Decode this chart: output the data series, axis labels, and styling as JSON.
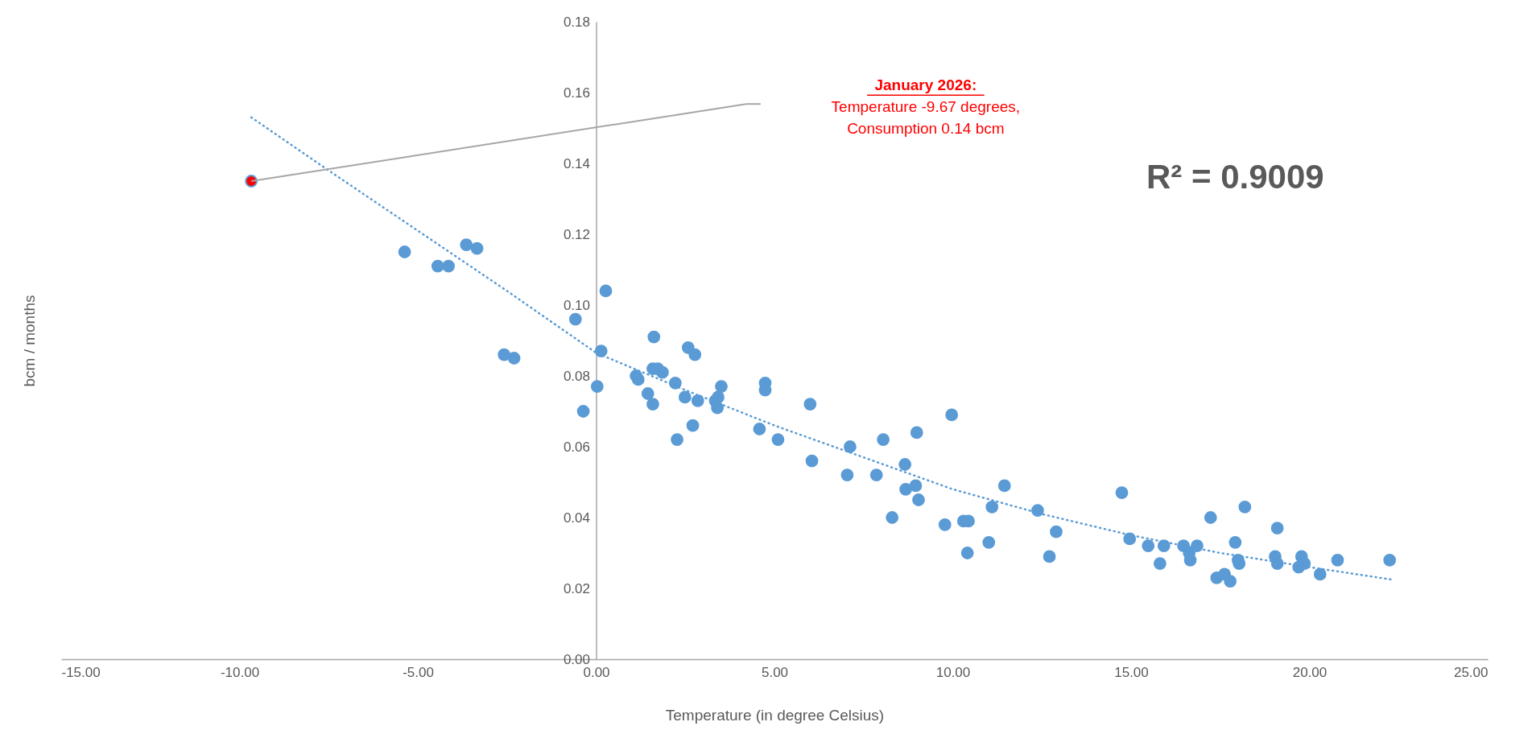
{
  "chart_data": {
    "type": "scatter",
    "xlabel": "Temperature (in degree Celsius)",
    "ylabel": "bcm / months",
    "xlim": [
      -15,
      25
    ],
    "ylim": [
      0,
      0.18
    ],
    "xticks": [
      {
        "value": -15,
        "label": "-15.00"
      },
      {
        "value": -10,
        "label": "-10.00"
      },
      {
        "value": -5,
        "label": "-5.00"
      },
      {
        "value": 0,
        "label": "0.00"
      },
      {
        "value": 5,
        "label": "5.00"
      },
      {
        "value": 10,
        "label": "10.00"
      },
      {
        "value": 15,
        "label": "15.00"
      },
      {
        "value": 20,
        "label": "20.00"
      },
      {
        "value": 25,
        "label": "25.00"
      }
    ],
    "yticks": [
      {
        "value": 0,
        "label": "0.00"
      },
      {
        "value": 0.02,
        "label": "0.02"
      },
      {
        "value": 0.04,
        "label": "0.04"
      },
      {
        "value": 0.06,
        "label": "0.06"
      },
      {
        "value": 0.08,
        "label": "0.08"
      },
      {
        "value": 0.1,
        "label": "0.10"
      },
      {
        "value": 0.12,
        "label": "0.12"
      },
      {
        "value": 0.14,
        "label": "0.14"
      },
      {
        "value": 0.16,
        "label": "0.16"
      },
      {
        "value": 0.18,
        "label": "0.18"
      }
    ],
    "series": [
      {
        "marker": "circle",
        "color": "#5b9bd5",
        "x": [
          -9.67,
          -5.37,
          -4.44,
          -4.14,
          -3.64,
          -3.34,
          -2.58,
          -2.3,
          -0.58,
          -0.36,
          0.03,
          0.14,
          0.27,
          1.12,
          1.18,
          1.45,
          1.59,
          1.62,
          1.59,
          1.73,
          1.86,
          2.27,
          2.22,
          2.49,
          2.58,
          2.77,
          2.71,
          2.85,
          3.34,
          3.4,
          3.42,
          3.51,
          4.58,
          4.74,
          4.74,
          5.1,
          6.0,
          6.05,
          7.04,
          7.12,
          7.86,
          8.05,
          8.3,
          8.66,
          8.68,
          8.96,
          8.99,
          9.04,
          9.78,
          9.97,
          10.3,
          10.44,
          10.41,
          11.01,
          11.1,
          11.45,
          12.38,
          12.71,
          12.9,
          14.74,
          14.96,
          15.48,
          15.81,
          15.92,
          16.47,
          16.63,
          16.66,
          16.85,
          17.23,
          17.4,
          17.62,
          17.78,
          17.92,
          18.0,
          18.03,
          18.19,
          19.1,
          19.04,
          19.1,
          19.7,
          19.78,
          19.86,
          20.3,
          20.79,
          22.25
        ],
        "values": [
          0.135,
          0.115,
          0.111,
          0.111,
          0.117,
          0.116,
          0.086,
          0.085,
          0.096,
          0.07,
          0.077,
          0.087,
          0.104,
          0.08,
          0.079,
          0.075,
          0.082,
          0.091,
          0.072,
          0.082,
          0.081,
          0.062,
          0.078,
          0.074,
          0.088,
          0.086,
          0.066,
          0.073,
          0.073,
          0.071,
          0.074,
          0.077,
          0.065,
          0.078,
          0.076,
          0.062,
          0.072,
          0.056,
          0.052,
          0.06,
          0.052,
          0.062,
          0.04,
          0.055,
          0.048,
          0.049,
          0.064,
          0.045,
          0.038,
          0.069,
          0.039,
          0.039,
          0.03,
          0.033,
          0.043,
          0.049,
          0.042,
          0.029,
          0.036,
          0.047,
          0.034,
          0.032,
          0.027,
          0.032,
          0.032,
          0.03,
          0.028,
          0.032,
          0.04,
          0.023,
          0.024,
          0.022,
          0.033,
          0.028,
          0.027,
          0.043,
          0.037,
          0.029,
          0.027,
          0.026,
          0.029,
          0.027,
          0.024,
          0.028,
          0.028
        ],
        "colors": [
          "#ff0000",
          "#5b9bd5",
          "#5b9bd5",
          "#5b9bd5",
          "#5b9bd5",
          "#5b9bd5",
          "#5b9bd5",
          "#5b9bd5",
          "#5b9bd5",
          "#5b9bd5",
          "#5b9bd5",
          "#5b9bd5",
          "#5b9bd5",
          "#5b9bd5",
          "#5b9bd5",
          "#5b9bd5",
          "#5b9bd5",
          "#5b9bd5",
          "#5b9bd5",
          "#5b9bd5",
          "#5b9bd5",
          "#5b9bd5",
          "#5b9bd5",
          "#5b9bd5",
          "#5b9bd5",
          "#5b9bd5",
          "#5b9bd5",
          "#5b9bd5",
          "#5b9bd5",
          "#5b9bd5",
          "#5b9bd5",
          "#5b9bd5",
          "#5b9bd5",
          "#5b9bd5",
          "#5b9bd5",
          "#5b9bd5",
          "#5b9bd5",
          "#5b9bd5",
          "#5b9bd5",
          "#5b9bd5",
          "#5b9bd5",
          "#5b9bd5",
          "#5b9bd5",
          "#5b9bd5",
          "#5b9bd5",
          "#5b9bd5",
          "#5b9bd5",
          "#5b9bd5",
          "#5b9bd5",
          "#5b9bd5",
          "#5b9bd5",
          "#5b9bd5",
          "#5b9bd5",
          "#5b9bd5",
          "#5b9bd5",
          "#5b9bd5",
          "#5b9bd5",
          "#5b9bd5",
          "#5b9bd5",
          "#5b9bd5",
          "#5b9bd5",
          "#5b9bd5",
          "#5b9bd5",
          "#5b9bd5",
          "#5b9bd5",
          "#5b9bd5",
          "#5b9bd5",
          "#5b9bd5",
          "#5b9bd5",
          "#5b9bd5",
          "#5b9bd5",
          "#5b9bd5",
          "#5b9bd5",
          "#5b9bd5",
          "#5b9bd5",
          "#5b9bd5",
          "#5b9bd5",
          "#5b9bd5",
          "#5b9bd5",
          "#5b9bd5",
          "#5b9bd5",
          "#5b9bd5",
          "#5b9bd5",
          "#5b9bd5",
          "#5b9bd5"
        ]
      },
      {
        "type": "line",
        "color": "#5b9bd5",
        "line_style": "dotted",
        "x": [
          -9.67,
          -7.5,
          -5,
          -2.5,
          0,
          2.5,
          5,
          7.5,
          10,
          12.5,
          15,
          17.5,
          20,
          22.3
        ],
        "values": [
          0.153,
          0.138,
          0.121,
          0.104,
          0.0865,
          0.076,
          0.066,
          0.057,
          0.048,
          0.041,
          0.035,
          0.03,
          0.026,
          0.0225
        ]
      }
    ],
    "annotations": [
      "January 2026:\nTemperature -9.67 degrees,\nConsumption 0.14 bcm",
      "R² = 0.9009"
    ]
  }
}
